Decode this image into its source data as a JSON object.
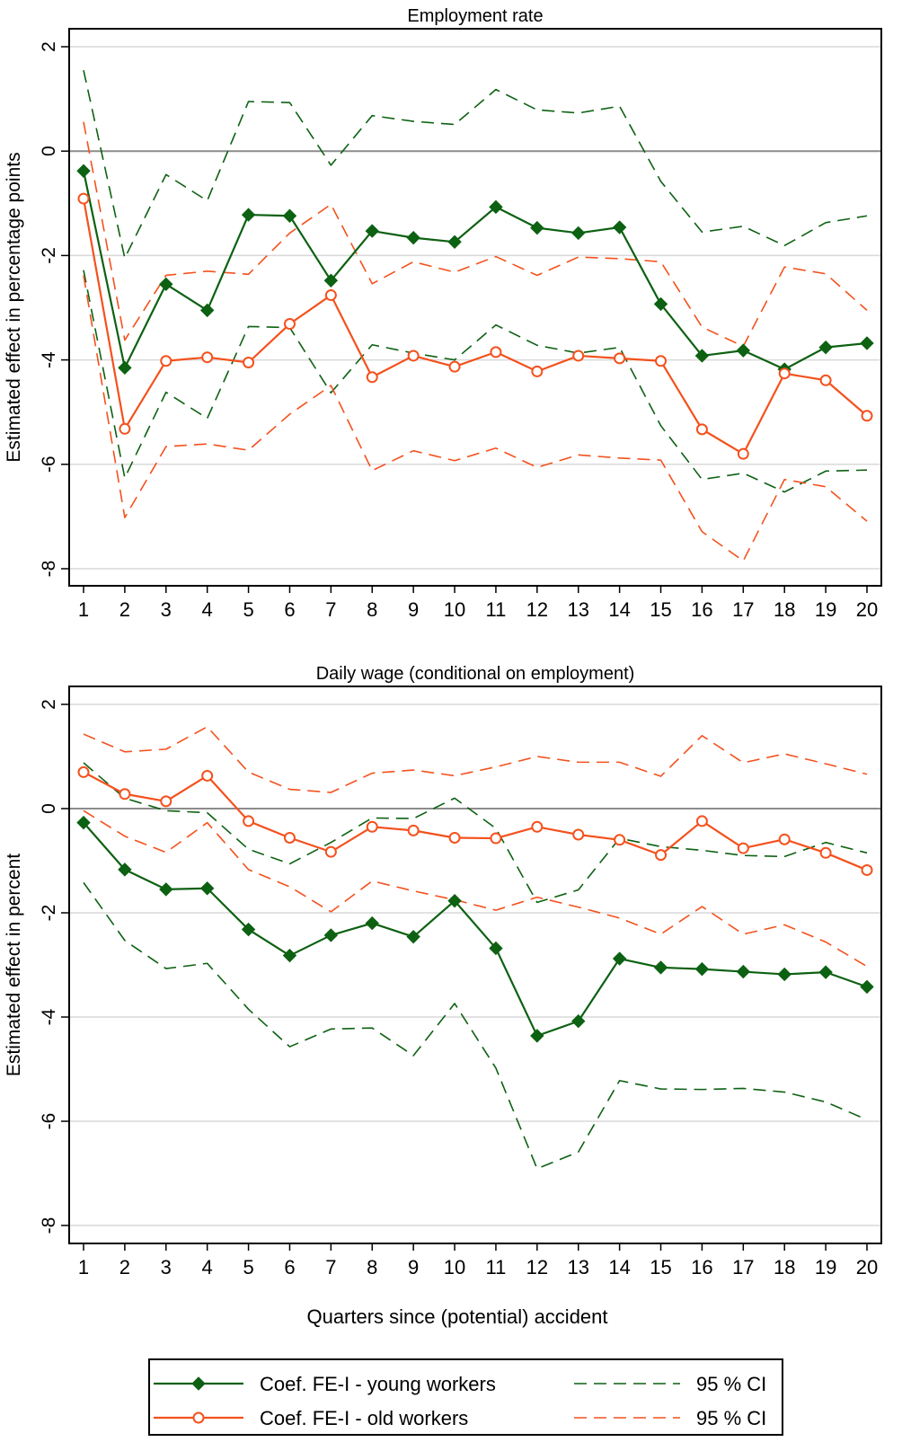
{
  "colors": {
    "young": "#0d6112",
    "old": "#f4511d",
    "grid": "#d9d9d9",
    "zero": "#8c8c8c"
  },
  "x_label": "Quarters since (potential) accident",
  "legend": [
    {
      "label": "Coef. FE-I - young workers",
      "series": "young",
      "style": "solid",
      "marker": "diamond"
    },
    {
      "label": "95 % CI",
      "series": "young",
      "style": "dashed",
      "marker": "none"
    },
    {
      "label": "Coef. FE-I - old workers",
      "series": "old",
      "style": "solid",
      "marker": "circle"
    },
    {
      "label": "95 % CI",
      "series": "old",
      "style": "dashed",
      "marker": "none"
    }
  ],
  "chart_data": [
    {
      "type": "line",
      "title": "Employment rate",
      "xlabel": "",
      "ylabel": "Estimated effect in percentage points",
      "x": [
        1,
        2,
        3,
        4,
        5,
        6,
        7,
        8,
        9,
        10,
        11,
        12,
        13,
        14,
        15,
        16,
        17,
        18,
        19,
        20
      ],
      "xlim": [
        1,
        20
      ],
      "ylim": [
        -8,
        2
      ],
      "yticks": [
        -8,
        -6,
        -4,
        -2,
        0,
        2
      ],
      "grid": true,
      "series": [
        {
          "key": "young_coef",
          "color": "young",
          "style": "solid",
          "marker": "diamond",
          "values": [
            -0.38,
            -4.15,
            -2.55,
            -3.05,
            -1.22,
            -1.24,
            -2.48,
            -1.53,
            -1.66,
            -1.74,
            -1.07,
            -1.47,
            -1.57,
            -1.46,
            -2.93,
            -3.92,
            -3.82,
            -4.18,
            -3.76,
            -3.68
          ]
        },
        {
          "key": "young_ci_upper",
          "color": "young",
          "style": "dashed",
          "marker": "none",
          "values": [
            1.55,
            -2.05,
            -0.45,
            -0.95,
            0.95,
            0.93,
            -0.27,
            0.68,
            0.57,
            0.51,
            1.18,
            0.79,
            0.73,
            0.86,
            -0.58,
            -1.55,
            -1.44,
            -1.81,
            -1.37,
            -1.24
          ]
        },
        {
          "key": "young_ci_lower",
          "color": "young",
          "style": "dashed",
          "marker": "none",
          "values": [
            -2.28,
            -6.26,
            -4.62,
            -5.12,
            -3.36,
            -3.38,
            -4.63,
            -3.71,
            -3.87,
            -4.0,
            -3.33,
            -3.72,
            -3.87,
            -3.76,
            -5.26,
            -6.29,
            -6.17,
            -6.53,
            -6.13,
            -6.11
          ]
        },
        {
          "key": "old_coef",
          "color": "old",
          "style": "solid",
          "marker": "circle",
          "values": [
            -0.91,
            -5.32,
            -4.02,
            -3.95,
            -4.05,
            -3.31,
            -2.76,
            -4.33,
            -3.92,
            -4.13,
            -3.85,
            -4.22,
            -3.92,
            -3.97,
            -4.02,
            -5.33,
            -5.8,
            -4.26,
            -4.39,
            -5.07
          ]
        },
        {
          "key": "old_ci_upper",
          "color": "old",
          "style": "dashed",
          "marker": "none",
          "values": [
            0.56,
            -3.62,
            -2.38,
            -2.3,
            -2.36,
            -1.57,
            -1.02,
            -2.54,
            -2.12,
            -2.32,
            -2.02,
            -2.38,
            -2.03,
            -2.06,
            -2.12,
            -3.37,
            -3.74,
            -2.22,
            -2.35,
            -3.05
          ]
        },
        {
          "key": "old_ci_lower",
          "color": "old",
          "style": "dashed",
          "marker": "none",
          "values": [
            -2.38,
            -7.02,
            -5.66,
            -5.61,
            -5.73,
            -5.04,
            -4.49,
            -6.12,
            -5.74,
            -5.93,
            -5.69,
            -6.06,
            -5.82,
            -5.88,
            -5.92,
            -7.29,
            -7.85,
            -6.29,
            -6.43,
            -7.09
          ]
        }
      ]
    },
    {
      "type": "line",
      "title": "Daily wage (conditional on employment)",
      "xlabel": "Quarters since (potential) accident",
      "ylabel": "Estimated effect in percent",
      "x": [
        1,
        2,
        3,
        4,
        5,
        6,
        7,
        8,
        9,
        10,
        11,
        12,
        13,
        14,
        15,
        16,
        17,
        18,
        19,
        20
      ],
      "xlim": [
        1,
        20
      ],
      "ylim": [
        -8,
        2
      ],
      "yticks": [
        -8,
        -6,
        -4,
        -2,
        0,
        2
      ],
      "grid": true,
      "series": [
        {
          "key": "young_coef",
          "color": "young",
          "style": "solid",
          "marker": "diamond",
          "values": [
            -0.27,
            -1.17,
            -1.55,
            -1.53,
            -2.32,
            -2.82,
            -2.43,
            -2.2,
            -2.46,
            -1.77,
            -2.68,
            -4.36,
            -4.08,
            -2.88,
            -3.05,
            -3.08,
            -3.13,
            -3.18,
            -3.14,
            -3.42
          ]
        },
        {
          "key": "young_ci_upper",
          "color": "young",
          "style": "dashed",
          "marker": "none",
          "values": [
            0.88,
            0.2,
            -0.04,
            -0.08,
            -0.78,
            -1.06,
            -0.65,
            -0.18,
            -0.19,
            0.2,
            -0.38,
            -1.8,
            -1.56,
            -0.57,
            -0.73,
            -0.8,
            -0.9,
            -0.92,
            -0.65,
            -0.85
          ]
        },
        {
          "key": "young_ci_lower",
          "color": "young",
          "style": "dashed",
          "marker": "none",
          "values": [
            -1.42,
            -2.53,
            -3.07,
            -2.97,
            -3.85,
            -4.57,
            -4.23,
            -4.21,
            -4.74,
            -3.74,
            -4.98,
            -6.91,
            -6.59,
            -5.22,
            -5.38,
            -5.39,
            -5.37,
            -5.44,
            -5.63,
            -5.97
          ]
        },
        {
          "key": "old_coef",
          "color": "old",
          "style": "solid",
          "marker": "circle",
          "values": [
            0.7,
            0.28,
            0.14,
            0.63,
            -0.24,
            -0.56,
            -0.83,
            -0.35,
            -0.42,
            -0.56,
            -0.57,
            -0.35,
            -0.5,
            -0.6,
            -0.89,
            -0.24,
            -0.76,
            -0.59,
            -0.85,
            -1.18
          ]
        },
        {
          "key": "old_ci_upper",
          "color": "old",
          "style": "dashed",
          "marker": "none",
          "values": [
            1.43,
            1.09,
            1.14,
            1.57,
            0.7,
            0.37,
            0.31,
            0.68,
            0.74,
            0.63,
            0.8,
            1.0,
            0.89,
            0.89,
            0.62,
            1.4,
            0.88,
            1.05,
            0.86,
            0.66
          ]
        },
        {
          "key": "old_ci_lower",
          "color": "old",
          "style": "dashed",
          "marker": "none",
          "values": [
            -0.04,
            -0.53,
            -0.84,
            -0.27,
            -1.17,
            -1.5,
            -1.98,
            -1.39,
            -1.58,
            -1.75,
            -1.95,
            -1.7,
            -1.89,
            -2.1,
            -2.41,
            -1.88,
            -2.41,
            -2.23,
            -2.56,
            -3.03
          ]
        }
      ]
    }
  ]
}
